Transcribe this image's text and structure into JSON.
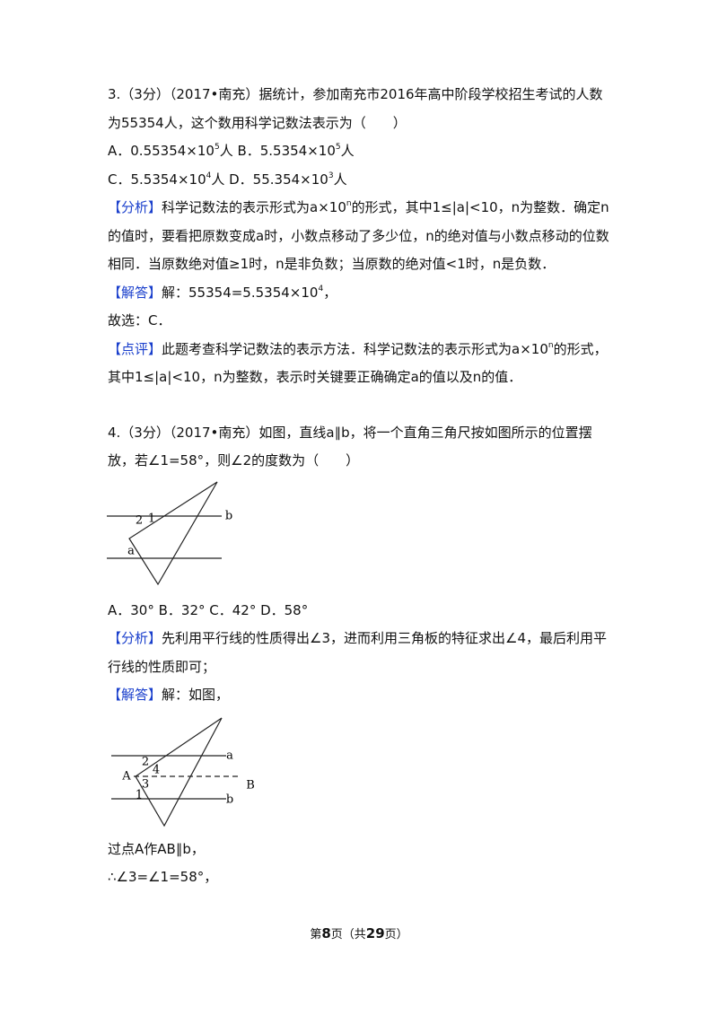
{
  "problems": [
    {
      "blocks": [
        {
          "runs": [
            "3.（3分）（2017•南充）据统计，参加南充市2016年高中阶段学校招生考试的人数为55354人，这个数用科学记数法表示为（　　）"
          ]
        },
        {
          "runs": [
            "A．0.55354×10",
            {
              "sup": "5"
            },
            "人  B．5.5354×10",
            {
              "sup": "5"
            },
            "人"
          ]
        },
        {
          "runs": [
            "C．5.5354×10",
            {
              "sup": "4"
            },
            "人    D．55.354×10",
            {
              "sup": "3"
            },
            "人"
          ]
        },
        {
          "runs": [
            {
              "tag": "【分析】"
            },
            "科学记数法的表示形式为a×10",
            {
              "sup": "n"
            },
            "的形式，其中1≤|a|<10，n为整数．确定n的值时，要看把原数变成a时，小数点移动了多少位，n的绝对值与小数点移动的位数相同．当原数绝对值≥1时，n是非负数；当原数的绝对值<1时，n是负数．"
          ]
        },
        {
          "runs": [
            {
              "tag": "【解答】"
            },
            "解：55354=5.5354×10",
            {
              "sup": "4"
            },
            "，"
          ]
        },
        {
          "runs": [
            "故选：C．"
          ]
        },
        {
          "runs": [
            {
              "tag": "【点评】"
            },
            "此题考查科学记数法的表示方法．科学记数法的表示形式为a×10",
            {
              "sup": "n"
            },
            "的形式，其中1≤|a|<10，n为整数，表示时关键要正确确定a的值以及n的值．"
          ]
        }
      ]
    },
    {
      "blocks": [
        {
          "runs": [
            "4.（3分）（2017•南充）如图，直线a∥b，将一个直角三角尺按如图所示的位置摆放，若∠1=58°，则∠2的度数为（　　）"
          ]
        },
        {
          "figure": [
            "2",
            "1",
            "a",
            "b"
          ]
        },
        {
          "runs": [
            "A．30°  B．32°  C．42°  D．58°"
          ]
        },
        {
          "runs": [
            {
              "tag": "【分析】"
            },
            "先利用平行线的性质得出∠3，进而利用三角板的特征求出∠4，最后利用平行线的性质即可；"
          ]
        },
        {
          "runs": [
            {
              "tag": "【解答】"
            },
            "解：如图，"
          ]
        },
        {
          "figure": [
            "2",
            "4",
            "A",
            "3",
            "1",
            "a",
            "b",
            "B"
          ]
        },
        {
          "runs": [
            "过点A作AB∥b，"
          ]
        },
        {
          "runs": [
            "∴∠3=∠1=58°，"
          ]
        }
      ]
    }
  ],
  "footer": [
    "第",
    "8",
    "页（共",
    "29",
    "页）"
  ]
}
